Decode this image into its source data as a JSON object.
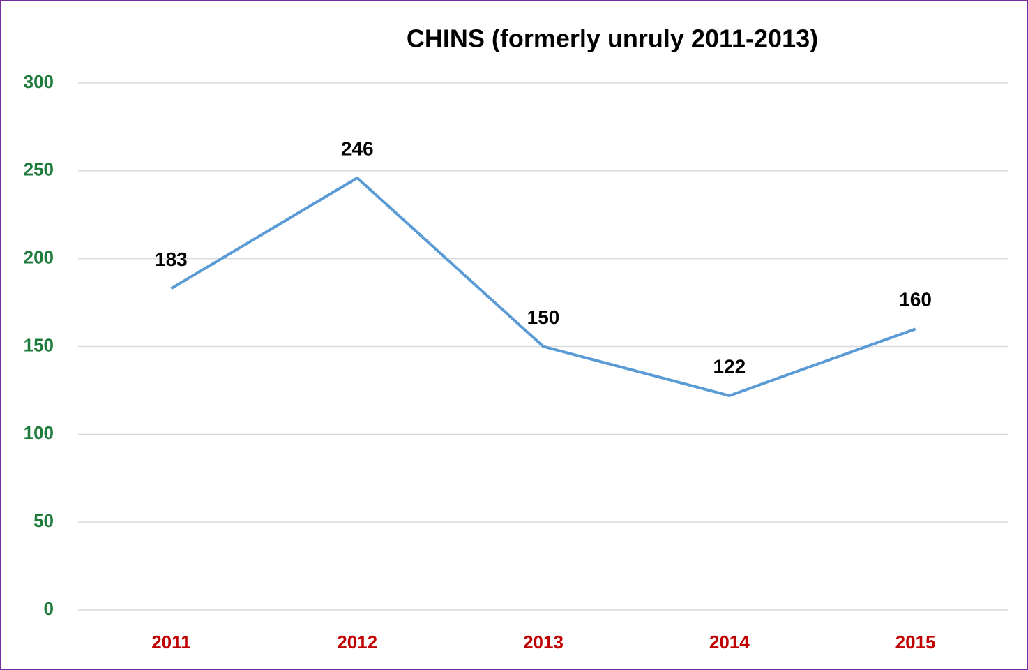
{
  "chart_data": {
    "type": "line",
    "title": "CHINS (formerly unruly 2011-2013)",
    "categories": [
      "2011",
      "2012",
      "2013",
      "2014",
      "2015"
    ],
    "series": [
      {
        "name": "CHINS",
        "color": "#5b9bd5",
        "values": [
          183,
          246,
          150,
          122,
          160
        ]
      }
    ],
    "ylim": [
      0,
      300
    ],
    "yticks": [
      0,
      50,
      100,
      150,
      200,
      250,
      300
    ],
    "grid": true,
    "ytick_color": "#1e7b3c",
    "xtick_color": "#c00000"
  }
}
